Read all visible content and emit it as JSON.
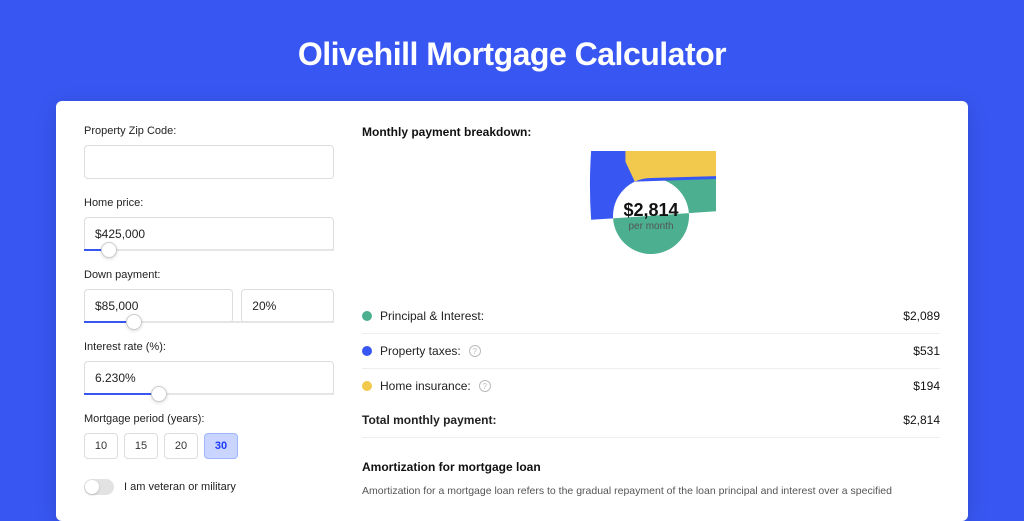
{
  "title": "Olivehill Mortgage Calculator",
  "left": {
    "zip": {
      "label": "Property Zip Code:",
      "value": ""
    },
    "home_price": {
      "label": "Home price:",
      "value": "$425,000",
      "slider_pct": 10
    },
    "down_payment": {
      "label": "Down payment:",
      "amount": "$85,000",
      "percent": "20%",
      "slider_pct": 20
    },
    "interest": {
      "label": "Interest rate (%):",
      "value": "6.230%",
      "slider_pct": 30
    },
    "period": {
      "label": "Mortgage period (years):",
      "options": [
        "10",
        "15",
        "20",
        "30"
      ],
      "selected": "30"
    },
    "veteran": {
      "label": "I am veteran or military",
      "on": false
    }
  },
  "right": {
    "breakdown_title": "Monthly payment breakdown:",
    "donut": {
      "amount": "$2,814",
      "sub": "per month",
      "slices": [
        {
          "label": "Principal & Interest:",
          "value": "$2,089",
          "color": "#4caf8f",
          "pct": 74
        },
        {
          "label": "Property taxes:",
          "value": "$531",
          "color": "#3857f2",
          "pct": 19,
          "info": true
        },
        {
          "label": "Home insurance:",
          "value": "$194",
          "color": "#f2c94c",
          "pct": 7,
          "info": true
        }
      ],
      "ring_width": 22
    },
    "total": {
      "label": "Total monthly payment:",
      "value": "$2,814"
    },
    "amort": {
      "title": "Amortization for mortgage loan",
      "text": "Amortization for a mortgage loan refers to the gradual repayment of the loan principal and interest over a specified"
    }
  },
  "colors": {
    "page_bg": "#3857f2",
    "card_bg": "#ffffff",
    "input_border": "#dddddd",
    "slider_fill": "#3857f2"
  }
}
